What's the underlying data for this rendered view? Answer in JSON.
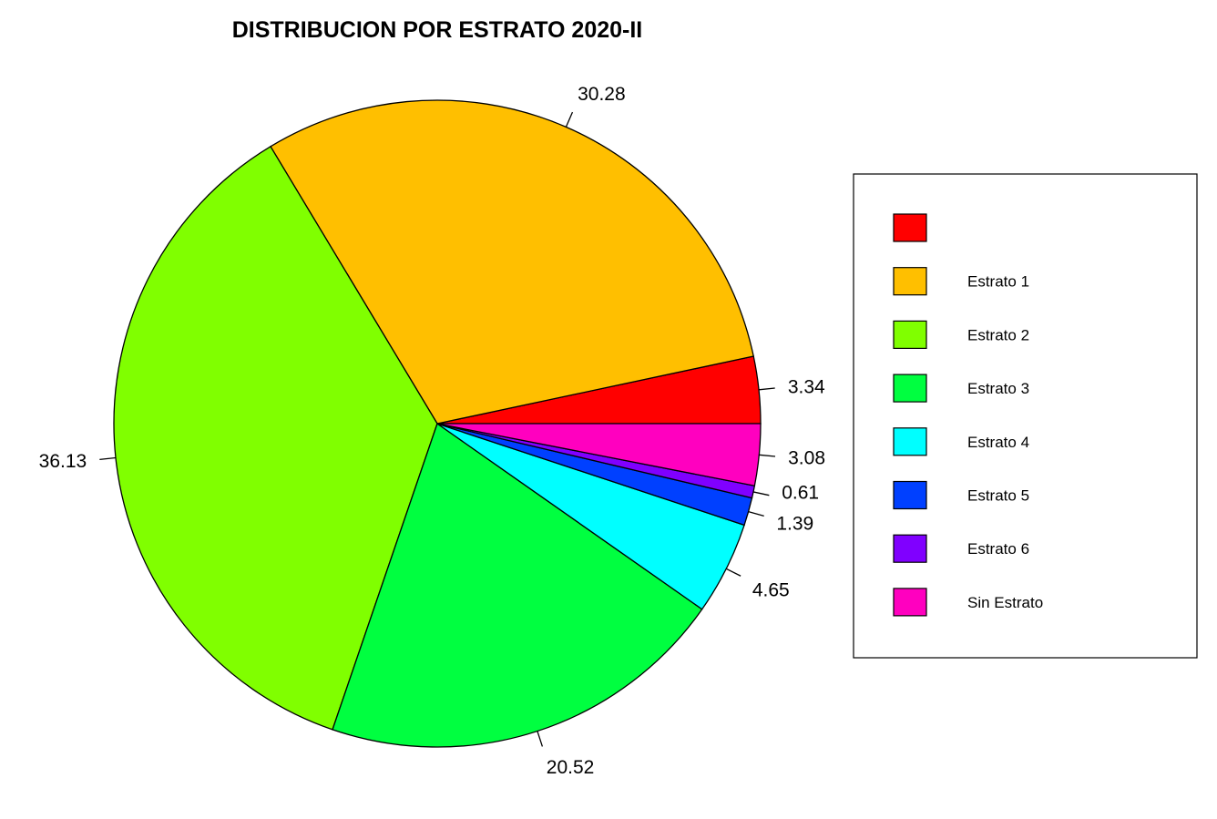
{
  "chart_data": {
    "type": "pie",
    "title": "DISTRIBUCION POR ESTRATO 2020-II",
    "categories": [
      "",
      "Estrato 1",
      "Estrato 2",
      "Estrato 3",
      "Estrato 4",
      "Estrato 5",
      "Estrato 6",
      "Sin Estrato"
    ],
    "values": [
      3.34,
      30.28,
      36.13,
      20.52,
      4.65,
      1.39,
      0.61,
      3.08
    ],
    "labels": [
      "3.34",
      "30.28",
      "36.13",
      "20.52",
      "4.65",
      "1.39",
      "0.61",
      "3.08"
    ],
    "colors": [
      "#ff0000",
      "#ffbf00",
      "#80ff00",
      "#00ff40",
      "#00ffff",
      "#0040ff",
      "#8000ff",
      "#ff00bf"
    ],
    "start_angle_deg": 0,
    "direction": "counterclockwise",
    "legend_position": "right"
  }
}
